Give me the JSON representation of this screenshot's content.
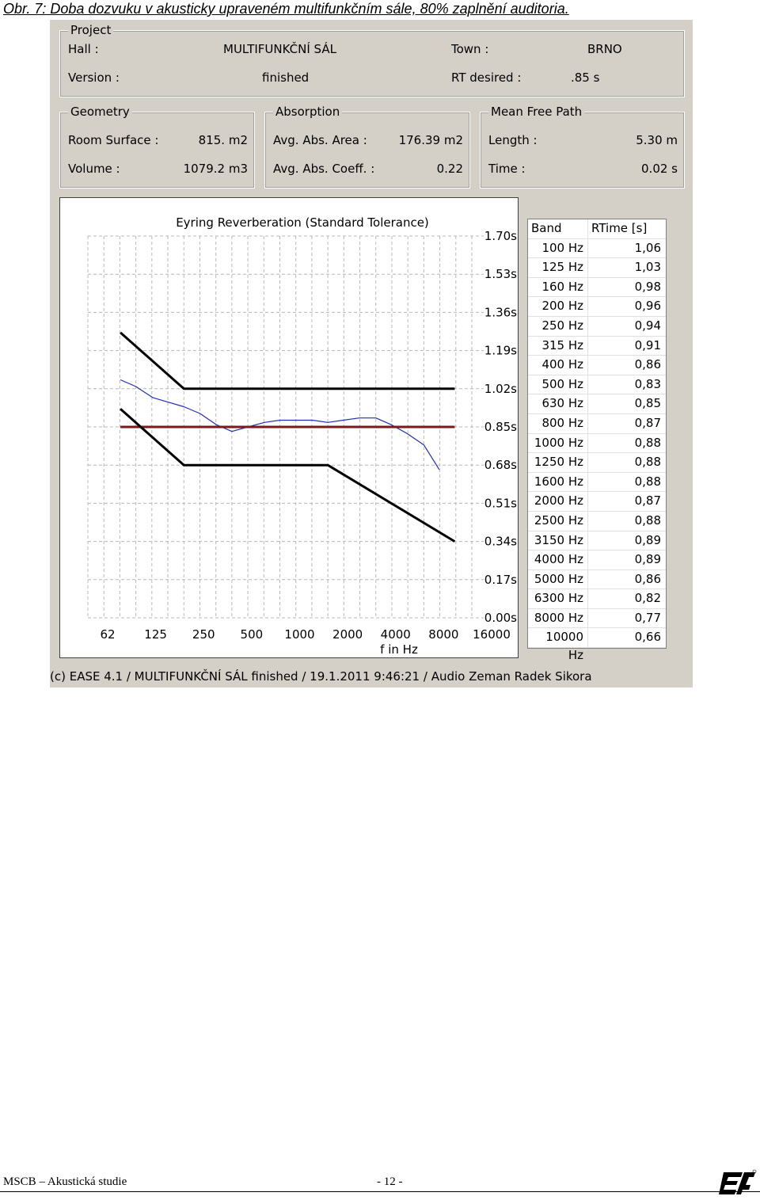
{
  "caption": {
    "prefix": "Obr. 7:",
    "text": " Doba dozvuku v akusticky upraveném multifunkčním sále, 80% zaplnění auditoria."
  },
  "project": {
    "legend": "Project",
    "hall_label": "Hall :",
    "hall_value": "MULTIFUNKČNÍ SÁL",
    "town_label": "Town :",
    "town_value": "BRNO",
    "version_label": "Version :",
    "version_value": "finished",
    "rt_label": "RT desired :",
    "rt_value": ".85 s"
  },
  "geometry": {
    "legend": "Geometry",
    "surface_label": "Room Surface :",
    "surface_value": "815. m2",
    "volume_label": "Volume :",
    "volume_value": "1079.2 m3"
  },
  "absorption": {
    "legend": "Absorption",
    "area_label": "Avg. Abs. Area :",
    "area_value": "176.39 m2",
    "coeff_label": "Avg. Abs. Coeff. :",
    "coeff_value": "0.22"
  },
  "mfp": {
    "legend": "Mean Free Path",
    "length_label": "Length :",
    "length_value": "5.30 m",
    "time_label": "Time :",
    "time_value": "0.02 s"
  },
  "chart_data": {
    "type": "line",
    "title": "Eyring Reverberation (Standard Tolerance)",
    "xlabel": "f in Hz",
    "x_tick_labels": [
      "62",
      "125",
      "250",
      "500",
      "1000",
      "2000",
      "4000",
      "8000",
      "16000"
    ],
    "y_tick_labels": [
      "1.70s",
      "1.53s",
      "1.36s",
      "1.19s",
      "1.02s",
      "0.85s",
      "0.68s",
      "0.51s",
      "0.34s",
      "0.17s",
      "0.00s"
    ],
    "ylim": [
      0,
      1.7
    ],
    "x_scale": "log",
    "grid": true,
    "series": [
      {
        "color": "#1f2fb8",
        "x": [
          100,
          125,
          160,
          200,
          250,
          315,
          400,
          500,
          630,
          800,
          1000,
          1250,
          1600,
          2000,
          2500,
          3150,
          4000,
          5000,
          6300,
          8000,
          10000
        ],
        "values": [
          1.06,
          1.03,
          0.98,
          0.96,
          0.94,
          0.91,
          0.86,
          0.83,
          0.85,
          0.87,
          0.88,
          0.88,
          0.88,
          0.87,
          0.88,
          0.89,
          0.89,
          0.86,
          0.82,
          0.77,
          0.66
        ]
      },
      {
        "color": "#7a1a1a",
        "x": [
          100,
          12500
        ],
        "values": [
          0.85,
          0.85
        ]
      },
      {
        "color": "#000000",
        "x": [
          100,
          250,
          12500
        ],
        "values": [
          1.27,
          1.02,
          1.02
        ]
      },
      {
        "color": "#000000",
        "x": [
          100,
          250,
          2000,
          12500
        ],
        "values": [
          0.93,
          0.68,
          0.68,
          0.34
        ]
      }
    ]
  },
  "table": {
    "headers": [
      "Band",
      "RTime [s]"
    ],
    "rows": [
      [
        "100 Hz",
        "1,06"
      ],
      [
        "125 Hz",
        "1,03"
      ],
      [
        "160 Hz",
        "0,98"
      ],
      [
        "200 Hz",
        "0,96"
      ],
      [
        "250 Hz",
        "0,94"
      ],
      [
        "315 Hz",
        "0,91"
      ],
      [
        "400 Hz",
        "0,86"
      ],
      [
        "500 Hz",
        "0,83"
      ],
      [
        "630 Hz",
        "0,85"
      ],
      [
        "800 Hz",
        "0,87"
      ],
      [
        "1000 Hz",
        "0,88"
      ],
      [
        "1250 Hz",
        "0,88"
      ],
      [
        "1600 Hz",
        "0,88"
      ],
      [
        "2000 Hz",
        "0,87"
      ],
      [
        "2500 Hz",
        "0,88"
      ],
      [
        "3150 Hz",
        "0,89"
      ],
      [
        "4000 Hz",
        "0,89"
      ],
      [
        "5000 Hz",
        "0,86"
      ],
      [
        "6300 Hz",
        "0,82"
      ],
      [
        "8000 Hz",
        "0,77"
      ],
      [
        "10000 Hz",
        "0,66"
      ]
    ]
  },
  "copyright": "(c) EASE 4.1  / MULTIFUNKČNÍ SÁL finished / 19.1.2011 9:46:21 / Audio Zeman Radek Sikora",
  "footer": {
    "left": "MSCB – Akustická studie",
    "page": "- 12 -"
  }
}
